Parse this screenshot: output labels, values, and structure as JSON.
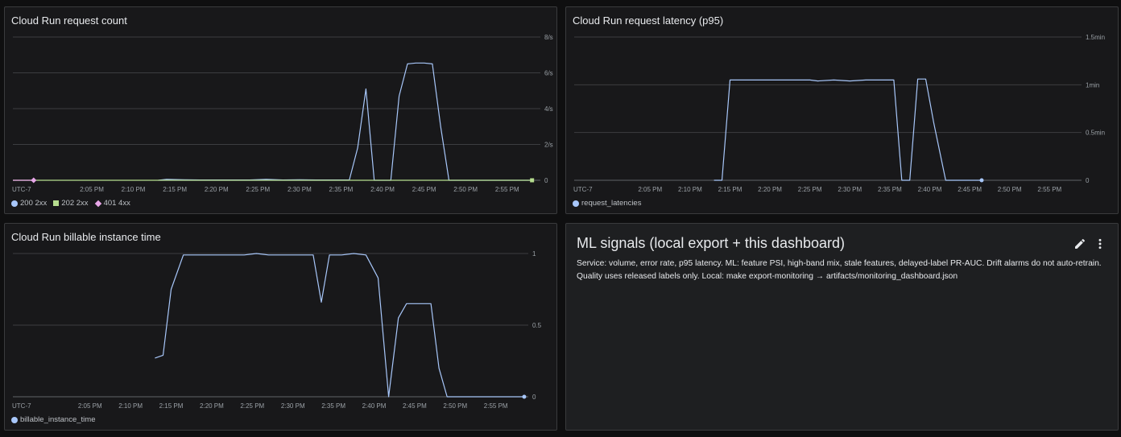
{
  "panels": {
    "request_count": {
      "title": "Cloud Run request count",
      "legend": [
        {
          "label": "200 2xx",
          "color": "#a8c7fa",
          "shape": "circle"
        },
        {
          "label": "202 2xx",
          "color": "#b6dd8f",
          "shape": "square"
        },
        {
          "label": "401 4xx",
          "color": "#e8a6e8",
          "shape": "diamond"
        }
      ]
    },
    "latency": {
      "title": "Cloud Run request latency (p95)",
      "legend": [
        {
          "label": "request_latencies",
          "color": "#a8c7fa",
          "shape": "circle"
        }
      ]
    },
    "billable": {
      "title": "Cloud Run billable instance time",
      "legend": [
        {
          "label": "billable_instance_time",
          "color": "#a8c7fa",
          "shape": "circle"
        }
      ]
    },
    "ml_signals": {
      "title": "ML signals (local export + this dashboard)",
      "body": "Service: volume, error rate, p95 latency. ML: feature PSI, high-band mix, stale features, delayed-label PR-AUC. Drift alarms do not auto-retrain. Quality uses released labels only. Local: make export-monitoring → artifacts/monitoring_dashboard.json",
      "edit_icon": "pencil-icon",
      "more_icon": "more-vert-icon"
    }
  },
  "chart_data": [
    {
      "type": "line",
      "title": "Cloud Run request count",
      "timezone": "UTC-7",
      "x_unit": "minutes after 2:00 PM",
      "x_tick_labels": [
        "2:05 PM",
        "2:10 PM",
        "2:15 PM",
        "2:20 PM",
        "2:25 PM",
        "2:30 PM",
        "2:35 PM",
        "2:40 PM",
        "2:45 PM",
        "2:50 PM",
        "2:55 PM"
      ],
      "xlim": [
        -4.5,
        59
      ],
      "y_tick_labels": [
        "0",
        "2/s",
        "4/s",
        "6/s",
        "8/s"
      ],
      "ylim": [
        0,
        8
      ],
      "grid": true,
      "legend_position": "bottom-left",
      "series": [
        {
          "name": "200 2xx",
          "color": "#a8c7fa",
          "x": [
            13,
            14,
            16,
            18,
            20,
            24,
            26,
            28,
            30,
            32,
            34,
            36,
            37,
            38,
            39,
            40,
            41,
            42,
            43,
            44,
            45,
            46,
            47,
            48,
            55,
            58
          ],
          "y": [
            0,
            0.05,
            0.03,
            0.02,
            0.02,
            0.02,
            0.05,
            0.02,
            0.03,
            0.02,
            0.02,
            0.02,
            1.8,
            5.1,
            0,
            0,
            0,
            4.7,
            6.5,
            6.55,
            6.55,
            6.5,
            3,
            0,
            0,
            0
          ]
        },
        {
          "name": "202 2xx",
          "color": "#b6dd8f",
          "x": [
            -4.5,
            58
          ],
          "y": [
            0,
            0
          ]
        },
        {
          "name": "401 4xx",
          "color": "#e8a6e8",
          "x": [
            -4.5,
            -2
          ],
          "y": [
            0,
            0
          ]
        }
      ]
    },
    {
      "type": "line",
      "title": "Cloud Run request latency (p95)",
      "timezone": "UTC-7",
      "x_unit": "minutes after 2:00 PM",
      "x_tick_labels": [
        "2:05 PM",
        "2:10 PM",
        "2:15 PM",
        "2:20 PM",
        "2:25 PM",
        "2:30 PM",
        "2:35 PM",
        "2:40 PM",
        "2:45 PM",
        "2:50 PM",
        "2:55 PM"
      ],
      "xlim": [
        -4.5,
        59
      ],
      "y_tick_labels": [
        "0",
        "0.5min",
        "1min",
        "1.5min"
      ],
      "ylim": [
        0,
        1.5
      ],
      "y_unit": "min",
      "grid": true,
      "legend_position": "bottom-left",
      "series": [
        {
          "name": "request_latencies",
          "color": "#a8c7fa",
          "x": [
            13,
            14,
            15,
            20,
            25,
            26,
            28,
            30,
            32,
            34,
            35.5,
            36.5,
            37.5,
            38.5,
            39.5,
            40.5,
            42,
            46.5
          ],
          "y": [
            0,
            0,
            1.05,
            1.05,
            1.05,
            1.04,
            1.05,
            1.04,
            1.05,
            1.05,
            1.05,
            0,
            0,
            1.06,
            1.06,
            0.6,
            0,
            0
          ]
        }
      ]
    },
    {
      "type": "line",
      "title": "Cloud Run billable instance time",
      "timezone": "UTC-7",
      "x_unit": "minutes after 2:00 PM",
      "x_tick_labels": [
        "2:05 PM",
        "2:10 PM",
        "2:15 PM",
        "2:20 PM",
        "2:25 PM",
        "2:30 PM",
        "2:35 PM",
        "2:40 PM",
        "2:45 PM",
        "2:50 PM",
        "2:55 PM"
      ],
      "xlim": [
        -4.5,
        59
      ],
      "y_tick_labels": [
        "0",
        "0.5",
        "1"
      ],
      "ylim": [
        0,
        1
      ],
      "grid": true,
      "legend_position": "bottom-left",
      "series": [
        {
          "name": "billable_instance_time",
          "color": "#a8c7fa",
          "x": [
            13,
            14,
            15,
            16.5,
            20,
            24,
            25.5,
            27,
            30,
            32.5,
            33.5,
            34.5,
            36,
            37.5,
            39,
            40.5,
            41.8,
            43,
            44,
            46,
            47,
            48,
            49,
            53,
            58.5
          ],
          "y": [
            0.27,
            0.29,
            0.75,
            0.99,
            0.99,
            0.99,
            1.0,
            0.99,
            0.99,
            0.99,
            0.66,
            0.99,
            0.99,
            1.0,
            0.99,
            0.83,
            0,
            0.55,
            0.65,
            0.65,
            0.65,
            0.2,
            0,
            0,
            0
          ]
        }
      ]
    }
  ]
}
